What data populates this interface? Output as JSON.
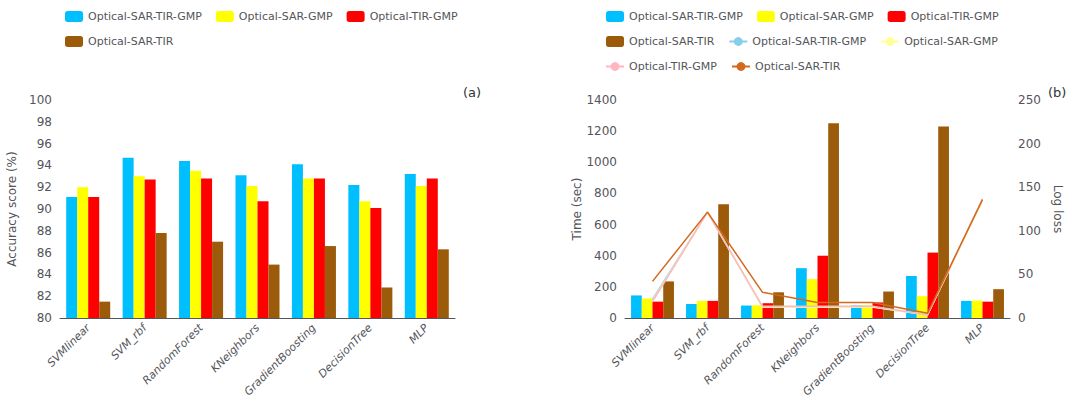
{
  "chart_data": [
    {
      "type": "bar",
      "ylabel": "Accuracy score (%)",
      "annotation": "(a)",
      "categories": [
        "SVMlinear",
        "SVM_rbf",
        "RandomForest",
        "KNeighbors",
        "GradientBoosting",
        "DecisionTree",
        "MLP"
      ],
      "series": [
        {
          "name": "Optical-SAR-TIR-GMP",
          "color": "#00BFFF",
          "values": [
            91.1,
            94.7,
            94.4,
            93.1,
            94.1,
            92.2,
            93.2
          ]
        },
        {
          "name": "Optical-SAR-GMP",
          "color": "#FFFF00",
          "values": [
            92.0,
            93.0,
            93.5,
            92.1,
            92.8,
            90.7,
            92.1
          ]
        },
        {
          "name": "Optical-TIR-GMP",
          "color": "#FF0000",
          "values": [
            91.1,
            92.7,
            92.8,
            90.7,
            92.8,
            90.1,
            92.8
          ]
        },
        {
          "name": "Optical-SAR-TIR",
          "color": "#9B5B0A",
          "values": [
            81.5,
            87.8,
            87.0,
            84.9,
            86.6,
            82.8,
            86.3
          ]
        }
      ],
      "ylim": [
        80,
        100
      ],
      "yticks": [
        80,
        82,
        84,
        86,
        88,
        90,
        92,
        94,
        96,
        98,
        100
      ],
      "grid": false,
      "legend": "top"
    },
    {
      "type": "bar",
      "ylabel": "Time (sec)",
      "y2label": "Log loss",
      "annotation": "(b)",
      "categories": [
        "SVMlinear",
        "SVM_rbf",
        "RandomForest",
        "KNeighbors",
        "GradientBoosting",
        "DecisionTree",
        "MLP"
      ],
      "series": [
        {
          "name": "Optical-SAR-TIR-GMP",
          "type": "bar",
          "color": "#00BFFF",
          "values": [
            145,
            90,
            80,
            320,
            80,
            270,
            110
          ]
        },
        {
          "name": "Optical-SAR-GMP",
          "type": "bar",
          "color": "#FFFF00",
          "values": [
            125,
            110,
            82,
            250,
            82,
            140,
            112
          ]
        },
        {
          "name": "Optical-TIR-GMP",
          "type": "bar",
          "color": "#FF0000",
          "values": [
            105,
            110,
            95,
            400,
            100,
            420,
            105
          ]
        },
        {
          "name": "Optical-SAR-TIR",
          "type": "bar",
          "color": "#9B5B0A",
          "values": [
            235,
            730,
            165,
            1250,
            170,
            1230,
            185
          ]
        },
        {
          "name": "Optical-SAR-TIR-GMP",
          "type": "line",
          "color": "#87CEEB",
          "values": [
            120,
            680,
            70,
            70,
            70,
            20,
            760
          ]
        },
        {
          "name": "Optical-SAR-GMP",
          "type": "line",
          "color": "#FFFF99",
          "values": [
            110,
            680,
            70,
            70,
            70,
            20,
            755
          ]
        },
        {
          "name": "Optical-TIR-GMP",
          "type": "line",
          "color": "#FFB6C1",
          "values": [
            105,
            680,
            75,
            75,
            75,
            20,
            765
          ]
        },
        {
          "name": "Optical-SAR-TIR",
          "type": "line",
          "color": "#D2691E",
          "values": [
            235,
            680,
            165,
            100,
            100,
            30,
            760
          ]
        }
      ],
      "ylim": [
        0,
        1400
      ],
      "yticks": [
        0,
        200,
        400,
        600,
        800,
        1000,
        1200,
        1400
      ],
      "y2lim": [
        0,
        250
      ],
      "y2ticks": [
        0,
        50,
        100,
        150,
        200,
        250
      ],
      "grid": false,
      "legend": "top"
    }
  ]
}
